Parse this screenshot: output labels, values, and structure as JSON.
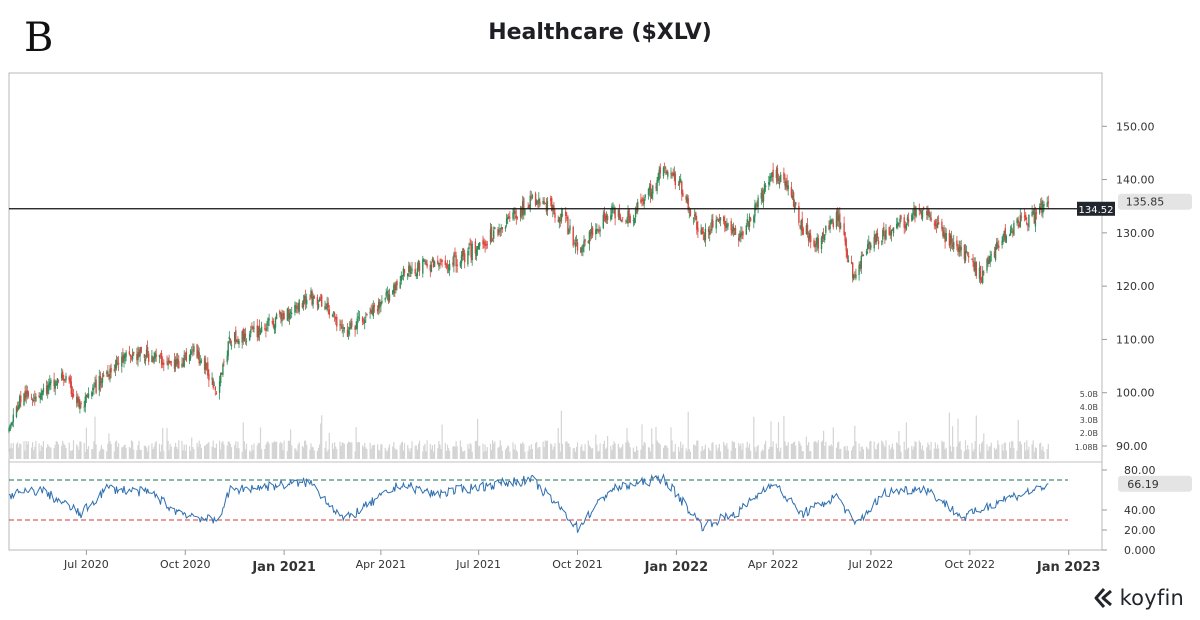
{
  "header": {
    "panel_letter": "B",
    "title": "Healthcare ($XLV)"
  },
  "brand": {
    "name": "koyfin",
    "icon": "koyfin-logo-icon"
  },
  "colors": {
    "up": "#2e8b57",
    "down": "#d9463e",
    "volume": "#d4d4d4",
    "rsi_line": "#2f6fb0",
    "rsi_upper": "#1e6b55",
    "rsi_lower": "#d23a3a",
    "level_line": "#111111",
    "last_badge": "#e4e4e4",
    "level_badge": "#22262e"
  },
  "chart_data": {
    "type": "candlestick",
    "title": "Healthcare ($XLV)",
    "price_axis": {
      "ticks": [
        "150.00",
        "140.00",
        "130.00",
        "120.00",
        "110.00",
        "100.00",
        "90.00"
      ],
      "range": [
        87,
        160
      ]
    },
    "volume_axis": {
      "ticks": [
        "5.0B",
        "4.0B",
        "3.0B",
        "2.0B",
        "1.08B"
      ]
    },
    "rsi_axis": {
      "ticks": [
        "80.00",
        "40.00",
        "20.00",
        "0.000"
      ],
      "range": [
        0,
        88
      ],
      "overbought": 70,
      "oversold": 30
    },
    "time_axis": {
      "labels": [
        {
          "label": "Jul 2020",
          "date": "2020-07-01",
          "bold": false
        },
        {
          "label": "Oct 2020",
          "date": "2020-10-01",
          "bold": false
        },
        {
          "label": "Jan 2021",
          "date": "2021-01-01",
          "bold": true
        },
        {
          "label": "Apr 2021",
          "date": "2021-04-01",
          "bold": false
        },
        {
          "label": "Jul 2021",
          "date": "2021-07-01",
          "bold": false
        },
        {
          "label": "Oct 2021",
          "date": "2021-10-01",
          "bold": false
        },
        {
          "label": "Jan 2022",
          "date": "2022-01-01",
          "bold": true
        },
        {
          "label": "Apr 2022",
          "date": "2022-04-01",
          "bold": false
        },
        {
          "label": "Jul 2022",
          "date": "2022-07-01",
          "bold": false
        },
        {
          "label": "Oct 2022",
          "date": "2022-10-01",
          "bold": false
        },
        {
          "label": "Jan 2023",
          "date": "2023-01-01",
          "bold": true
        }
      ],
      "start": "2020-04-20",
      "end": "2023-02-01"
    },
    "horizontal_level": {
      "value": 134.52,
      "label": "134.52"
    },
    "last_price": {
      "value": 135.85,
      "label": "135.85"
    },
    "last_rsi": {
      "value": 66.19,
      "label": "66.19"
    },
    "price_path": [
      [
        "2020-04-20",
        93
      ],
      [
        "2020-05-01",
        99
      ],
      [
        "2020-05-20",
        100
      ],
      [
        "2020-06-10",
        103
      ],
      [
        "2020-06-26",
        97
      ],
      [
        "2020-07-20",
        104
      ],
      [
        "2020-08-10",
        107
      ],
      [
        "2020-08-31",
        107
      ],
      [
        "2020-09-20",
        105
      ],
      [
        "2020-10-10",
        108
      ],
      [
        "2020-10-30",
        101
      ],
      [
        "2020-11-12",
        110
      ],
      [
        "2020-12-01",
        111
      ],
      [
        "2020-12-20",
        113
      ],
      [
        "2021-01-10",
        116
      ],
      [
        "2021-01-25",
        118
      ],
      [
        "2021-02-10",
        116
      ],
      [
        "2021-02-26",
        111
      ],
      [
        "2021-03-10",
        113
      ],
      [
        "2021-03-31",
        116
      ],
      [
        "2021-04-20",
        122
      ],
      [
        "2021-05-10",
        124
      ],
      [
        "2021-05-31",
        124
      ],
      [
        "2021-06-20",
        126
      ],
      [
        "2021-07-10",
        129
      ],
      [
        "2021-07-31",
        133
      ],
      [
        "2021-08-20",
        136
      ],
      [
        "2021-09-05",
        135
      ],
      [
        "2021-09-20",
        132
      ],
      [
        "2021-10-01",
        127
      ],
      [
        "2021-10-15",
        130
      ],
      [
        "2021-10-31",
        134
      ],
      [
        "2021-11-20",
        133
      ],
      [
        "2021-12-05",
        137
      ],
      [
        "2021-12-20",
        142
      ],
      [
        "2022-01-05",
        139
      ],
      [
        "2022-01-25",
        129
      ],
      [
        "2022-02-10",
        133
      ],
      [
        "2022-02-28",
        129
      ],
      [
        "2022-03-15",
        134
      ],
      [
        "2022-03-31",
        141
      ],
      [
        "2022-04-12",
        140
      ],
      [
        "2022-04-28",
        131
      ],
      [
        "2022-05-12",
        128
      ],
      [
        "2022-05-31",
        133
      ],
      [
        "2022-06-16",
        121
      ],
      [
        "2022-06-25",
        127
      ],
      [
        "2022-07-15",
        130
      ],
      [
        "2022-08-01",
        132
      ],
      [
        "2022-08-20",
        135
      ],
      [
        "2022-09-05",
        130
      ],
      [
        "2022-09-25",
        126
      ],
      [
        "2022-10-12",
        122
      ],
      [
        "2022-10-30",
        129
      ],
      [
        "2022-11-15",
        132
      ],
      [
        "2022-11-30",
        133
      ],
      [
        "2022-12-13",
        135.85
      ]
    ],
    "rsi_path": [
      [
        "2020-04-20",
        55
      ],
      [
        "2020-05-20",
        60
      ],
      [
        "2020-06-26",
        36
      ],
      [
        "2020-07-20",
        62
      ],
      [
        "2020-08-31",
        57
      ],
      [
        "2020-09-20",
        40
      ],
      [
        "2020-10-30",
        28
      ],
      [
        "2020-11-12",
        60
      ],
      [
        "2021-01-25",
        68
      ],
      [
        "2021-02-26",
        30
      ],
      [
        "2021-04-20",
        66
      ],
      [
        "2021-05-20",
        56
      ],
      [
        "2021-07-31",
        68
      ],
      [
        "2021-08-20",
        70
      ],
      [
        "2021-09-20",
        36
      ],
      [
        "2021-10-01",
        22
      ],
      [
        "2021-10-31",
        60
      ],
      [
        "2021-12-20",
        72
      ],
      [
        "2022-01-25",
        24
      ],
      [
        "2022-02-28",
        38
      ],
      [
        "2022-03-31",
        68
      ],
      [
        "2022-04-28",
        36
      ],
      [
        "2022-05-31",
        54
      ],
      [
        "2022-06-16",
        25
      ],
      [
        "2022-07-15",
        58
      ],
      [
        "2022-08-20",
        62
      ],
      [
        "2022-09-25",
        32
      ],
      [
        "2022-10-30",
        50
      ],
      [
        "2022-11-30",
        60
      ],
      [
        "2022-12-13",
        66.19
      ]
    ]
  }
}
